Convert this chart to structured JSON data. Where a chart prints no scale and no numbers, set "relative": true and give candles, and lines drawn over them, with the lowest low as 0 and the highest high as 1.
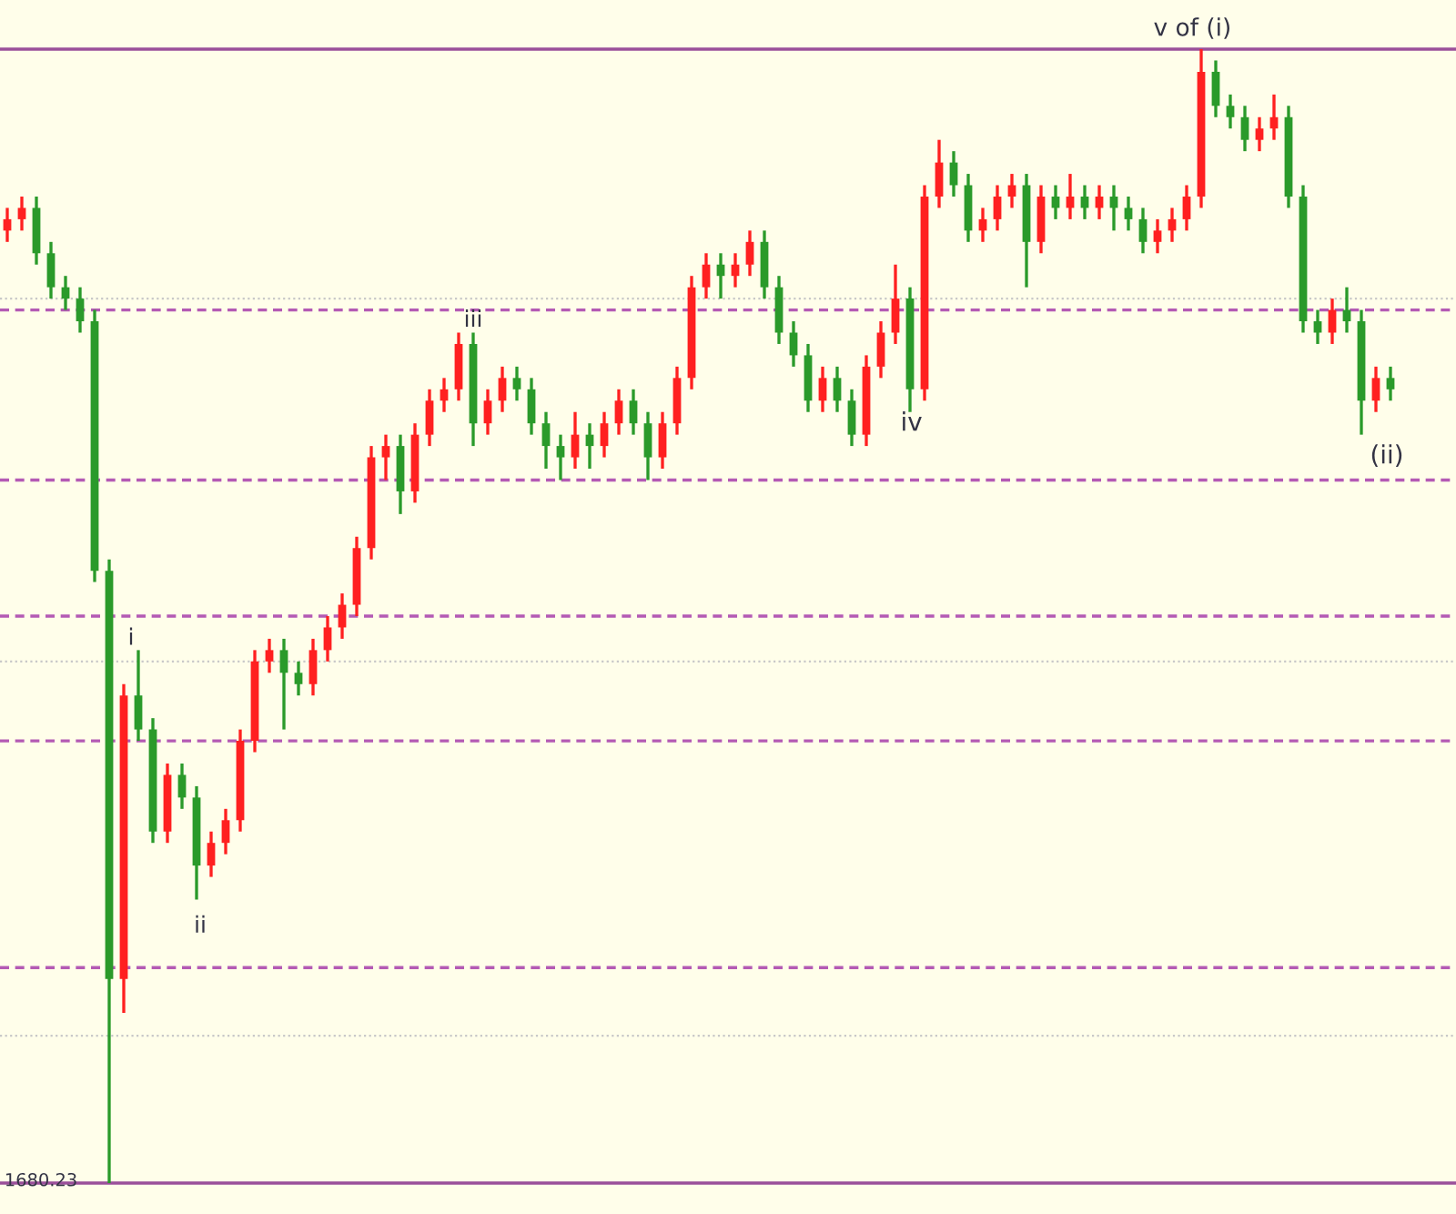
{
  "chart_data": {
    "type": "candlestick",
    "relative": true,
    "categories": [
      null,
      null,
      null,
      null,
      null,
      null,
      null,
      null,
      null,
      null,
      null,
      null,
      null,
      null,
      null,
      null,
      null,
      null,
      null,
      null,
      null,
      null,
      null,
      null,
      null,
      null,
      null,
      null,
      null,
      null,
      null,
      null,
      null,
      null,
      null,
      null,
      null,
      null,
      null,
      null,
      null,
      null,
      null,
      null,
      null,
      null,
      null,
      null,
      null,
      null,
      null,
      null,
      null,
      null,
      null,
      null,
      null,
      null,
      null,
      null,
      null,
      null,
      null,
      null,
      null,
      null,
      null,
      null,
      null,
      null,
      null,
      null,
      null,
      null,
      null,
      null,
      null,
      null,
      null,
      null,
      null,
      null,
      null,
      null,
      null,
      null,
      null,
      null,
      null,
      null,
      null,
      null,
      null,
      null,
      null,
      null
    ],
    "ohlc": [
      [
        0.84,
        0.86,
        0.83,
        0.85
      ],
      [
        0.85,
        0.87,
        0.84,
        0.86
      ],
      [
        0.86,
        0.87,
        0.81,
        0.82
      ],
      [
        0.82,
        0.83,
        0.78,
        0.79
      ],
      [
        0.79,
        0.8,
        0.77,
        0.78
      ],
      [
        0.78,
        0.79,
        0.75,
        0.76
      ],
      [
        0.76,
        0.77,
        0.53,
        0.54
      ],
      [
        0.54,
        0.55,
        0,
        0.18
      ],
      [
        0.18,
        0.44,
        0.15,
        0.43
      ],
      [
        0.43,
        0.47,
        0.39,
        0.4
      ],
      [
        0.4,
        0.41,
        0.3,
        0.31
      ],
      [
        0.31,
        0.37,
        0.3,
        0.36
      ],
      [
        0.36,
        0.37,
        0.33,
        0.34
      ],
      [
        0.34,
        0.35,
        0.25,
        0.28
      ],
      [
        0.28,
        0.31,
        0.27,
        0.3
      ],
      [
        0.3,
        0.33,
        0.29,
        0.32
      ],
      [
        0.32,
        0.4,
        0.31,
        0.39
      ],
      [
        0.39,
        0.47,
        0.38,
        0.46
      ],
      [
        0.46,
        0.48,
        0.45,
        0.47
      ],
      [
        0.47,
        0.48,
        0.4,
        0.45
      ],
      [
        0.45,
        0.46,
        0.43,
        0.44
      ],
      [
        0.44,
        0.48,
        0.43,
        0.47
      ],
      [
        0.47,
        0.5,
        0.46,
        0.49
      ],
      [
        0.49,
        0.52,
        0.48,
        0.51
      ],
      [
        0.51,
        0.57,
        0.5,
        0.56
      ],
      [
        0.56,
        0.65,
        0.55,
        0.64
      ],
      [
        0.64,
        0.66,
        0.62,
        0.65
      ],
      [
        0.65,
        0.66,
        0.59,
        0.61
      ],
      [
        0.61,
        0.67,
        0.6,
        0.66
      ],
      [
        0.66,
        0.7,
        0.65,
        0.69
      ],
      [
        0.69,
        0.71,
        0.68,
        0.7
      ],
      [
        0.7,
        0.75,
        0.69,
        0.74
      ],
      [
        0.74,
        0.75,
        0.65,
        0.67
      ],
      [
        0.67,
        0.7,
        0.66,
        0.69
      ],
      [
        0.69,
        0.72,
        0.68,
        0.71
      ],
      [
        0.71,
        0.72,
        0.69,
        0.7
      ],
      [
        0.7,
        0.71,
        0.66,
        0.67
      ],
      [
        0.67,
        0.68,
        0.63,
        0.65
      ],
      [
        0.65,
        0.66,
        0.62,
        0.64
      ],
      [
        0.64,
        0.68,
        0.63,
        0.66
      ],
      [
        0.66,
        0.67,
        0.63,
        0.65
      ],
      [
        0.65,
        0.68,
        0.64,
        0.67
      ],
      [
        0.67,
        0.7,
        0.66,
        0.69
      ],
      [
        0.69,
        0.7,
        0.66,
        0.67
      ],
      [
        0.67,
        0.68,
        0.62,
        0.64
      ],
      [
        0.64,
        0.68,
        0.63,
        0.67
      ],
      [
        0.67,
        0.72,
        0.66,
        0.71
      ],
      [
        0.71,
        0.8,
        0.7,
        0.79
      ],
      [
        0.79,
        0.82,
        0.78,
        0.81
      ],
      [
        0.81,
        0.82,
        0.78,
        0.8
      ],
      [
        0.8,
        0.82,
        0.79,
        0.81
      ],
      [
        0.81,
        0.84,
        0.8,
        0.83
      ],
      [
        0.83,
        0.84,
        0.78,
        0.79
      ],
      [
        0.79,
        0.8,
        0.74,
        0.75
      ],
      [
        0.75,
        0.76,
        0.72,
        0.73
      ],
      [
        0.73,
        0.74,
        0.68,
        0.69
      ],
      [
        0.69,
        0.72,
        0.68,
        0.71
      ],
      [
        0.71,
        0.72,
        0.68,
        0.69
      ],
      [
        0.69,
        0.7,
        0.65,
        0.66
      ],
      [
        0.66,
        0.73,
        0.65,
        0.72
      ],
      [
        0.72,
        0.76,
        0.71,
        0.75
      ],
      [
        0.75,
        0.81,
        0.74,
        0.78
      ],
      [
        0.78,
        0.79,
        0.68,
        0.7
      ],
      [
        0.7,
        0.88,
        0.69,
        0.87
      ],
      [
        0.87,
        0.92,
        0.86,
        0.9
      ],
      [
        0.9,
        0.91,
        0.87,
        0.88
      ],
      [
        0.88,
        0.89,
        0.83,
        0.84
      ],
      [
        0.84,
        0.86,
        0.83,
        0.85
      ],
      [
        0.85,
        0.88,
        0.84,
        0.87
      ],
      [
        0.87,
        0.89,
        0.86,
        0.88
      ],
      [
        0.88,
        0.89,
        0.79,
        0.83
      ],
      [
        0.83,
        0.88,
        0.82,
        0.87
      ],
      [
        0.87,
        0.88,
        0.85,
        0.86
      ],
      [
        0.86,
        0.89,
        0.85,
        0.87
      ],
      [
        0.87,
        0.88,
        0.85,
        0.86
      ],
      [
        0.86,
        0.88,
        0.85,
        0.87
      ],
      [
        0.87,
        0.88,
        0.84,
        0.86
      ],
      [
        0.86,
        0.87,
        0.84,
        0.85
      ],
      [
        0.85,
        0.86,
        0.82,
        0.83
      ],
      [
        0.83,
        0.85,
        0.82,
        0.84
      ],
      [
        0.84,
        0.86,
        0.83,
        0.85
      ],
      [
        0.85,
        0.88,
        0.84,
        0.87
      ],
      [
        0.87,
        1,
        0.86,
        0.98
      ],
      [
        0.98,
        0.99,
        0.94,
        0.95
      ],
      [
        0.95,
        0.96,
        0.93,
        0.94
      ],
      [
        0.94,
        0.95,
        0.91,
        0.92
      ],
      [
        0.92,
        0.94,
        0.91,
        0.93
      ],
      [
        0.93,
        0.96,
        0.92,
        0.94
      ],
      [
        0.94,
        0.95,
        0.86,
        0.87
      ],
      [
        0.87,
        0.88,
        0.75,
        0.76
      ],
      [
        0.76,
        0.77,
        0.74,
        0.75
      ],
      [
        0.75,
        0.78,
        0.74,
        0.77
      ],
      [
        0.77,
        0.79,
        0.75,
        0.76
      ],
      [
        0.76,
        0.77,
        0.66,
        0.69
      ],
      [
        0.69,
        0.72,
        0.68,
        0.71
      ],
      [
        0.71,
        0.72,
        0.69,
        0.7
      ]
    ],
    "colors": [
      "#ff2020",
      "#ff2020",
      "#2a9a2a",
      "#2a9a2a",
      "#2a9a2a",
      "#2a9a2a",
      "#2a9a2a",
      "#2a9a2a",
      "#ff2020",
      "#2a9a2a",
      "#2a9a2a",
      "#ff2020",
      "#2a9a2a",
      "#2a9a2a",
      "#ff2020",
      "#ff2020",
      "#ff2020",
      "#ff2020",
      "#ff2020",
      "#2a9a2a",
      "#2a9a2a",
      "#ff2020",
      "#ff2020",
      "#ff2020",
      "#ff2020",
      "#ff2020",
      "#ff2020",
      "#2a9a2a",
      "#ff2020",
      "#ff2020",
      "#ff2020",
      "#ff2020",
      "#2a9a2a",
      "#ff2020",
      "#ff2020",
      "#2a9a2a",
      "#2a9a2a",
      "#2a9a2a",
      "#2a9a2a",
      "#ff2020",
      "#2a9a2a",
      "#ff2020",
      "#ff2020",
      "#2a9a2a",
      "#2a9a2a",
      "#ff2020",
      "#ff2020",
      "#ff2020",
      "#ff2020",
      "#2a9a2a",
      "#ff2020",
      "#ff2020",
      "#2a9a2a",
      "#2a9a2a",
      "#2a9a2a",
      "#2a9a2a",
      "#ff2020",
      "#2a9a2a",
      "#2a9a2a",
      "#ff2020",
      "#ff2020",
      "#ff2020",
      "#2a9a2a",
      "#ff2020",
      "#ff2020",
      "#2a9a2a",
      "#2a9a2a",
      "#ff2020",
      "#ff2020",
      "#ff2020",
      "#2a9a2a",
      "#ff2020",
      "#2a9a2a",
      "#ff2020",
      "#2a9a2a",
      "#ff2020",
      "#2a9a2a",
      "#2a9a2a",
      "#2a9a2a",
      "#ff2020",
      "#ff2020",
      "#ff2020",
      "#ff2020",
      "#2a9a2a",
      "#2a9a2a",
      "#2a9a2a",
      "#ff2020",
      "#ff2020",
      "#2a9a2a",
      "#2a9a2a",
      "#2a9a2a",
      "#ff2020",
      "#2a9a2a",
      "#2a9a2a",
      "#ff2020",
      "#2a9a2a"
    ],
    "ref_lines": [
      {
        "axis": "y",
        "value": 1,
        "color": "#9a4f9a",
        "line_style": "solid"
      },
      {
        "axis": "y",
        "value": 0.78,
        "color": "#c8c8c8",
        "line_style": "dotted"
      },
      {
        "axis": "y",
        "value": 0.77,
        "color": "#b45ab4",
        "line_style": "dashed"
      },
      {
        "axis": "y",
        "value": 0.62,
        "color": "#b45ab4",
        "line_style": "dashed"
      },
      {
        "axis": "y",
        "value": 0.5,
        "color": "#b45ab4",
        "line_style": "dashed"
      },
      {
        "axis": "y",
        "value": 0.46,
        "color": "#c8c8c8",
        "line_style": "dotted"
      },
      {
        "axis": "y",
        "value": 0.39,
        "color": "#b45ab4",
        "line_style": "dashed"
      },
      {
        "axis": "y",
        "value": 0.19,
        "color": "#b45ab4",
        "line_style": "dashed"
      },
      {
        "axis": "y",
        "value": 0.13,
        "color": "#c8c8c8",
        "line_style": "dotted"
      },
      {
        "axis": "y",
        "value": 0,
        "color": "#9a4f9a",
        "line_style": "solid"
      }
    ],
    "annotations": [
      "1680.23",
      "i",
      "ii",
      "iii",
      "iv",
      "v of (i)",
      "(ii)"
    ]
  }
}
